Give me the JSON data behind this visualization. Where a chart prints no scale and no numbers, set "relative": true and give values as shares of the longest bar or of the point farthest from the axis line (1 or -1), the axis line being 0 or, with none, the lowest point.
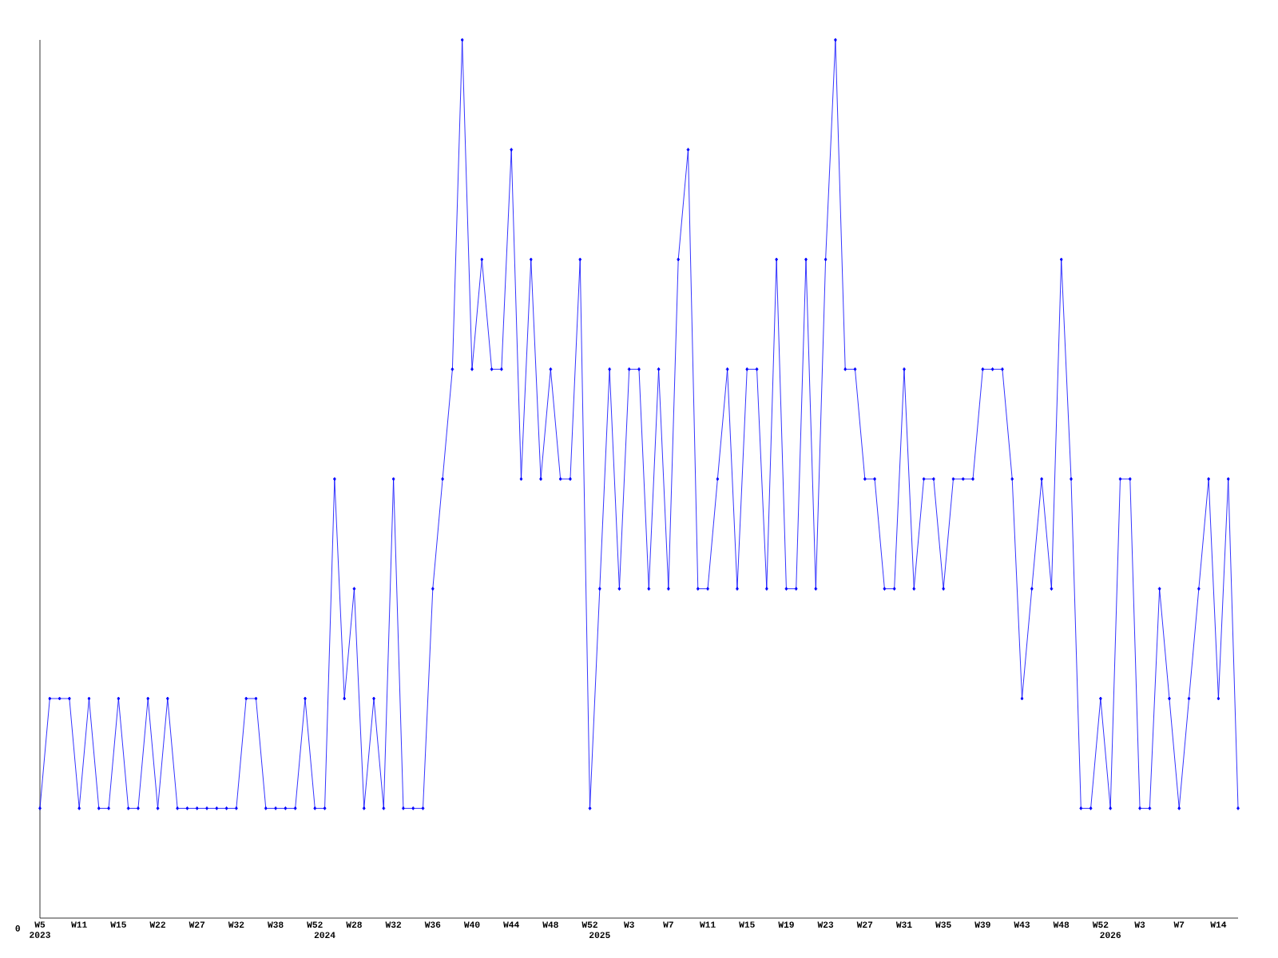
{
  "chart_data": {
    "type": "line",
    "relative": true,
    "color": "#0000ff",
    "marker": "diamond",
    "line_style": "solid",
    "grid": false,
    "categories": [
      "W5 2023",
      null,
      null,
      null,
      "W11",
      null,
      null,
      null,
      "W15",
      null,
      null,
      null,
      "W22",
      null,
      null,
      null,
      "W27",
      null,
      null,
      null,
      "W32",
      null,
      null,
      null,
      "W38",
      null,
      null,
      null,
      "W52",
      "2024",
      null,
      null,
      "W28",
      null,
      null,
      null,
      "W32",
      null,
      null,
      null,
      "W36",
      null,
      null,
      null,
      "W40",
      null,
      null,
      null,
      "W44",
      null,
      null,
      null,
      "W48",
      null,
      null,
      null,
      "W52",
      "2025",
      null,
      null,
      "W3",
      null,
      null,
      null,
      "W7",
      null,
      null,
      null,
      "W11",
      null,
      null,
      null,
      "W15",
      null,
      null,
      null,
      "W19",
      null,
      null,
      null,
      "W23",
      null,
      null,
      null,
      "W27",
      null,
      null,
      null,
      "W31",
      null,
      null,
      null,
      "W35",
      null,
      null,
      null,
      "W39",
      null,
      null,
      null,
      "W43",
      null,
      null,
      null,
      "W48",
      null,
      null,
      null,
      "W52",
      "2026",
      null,
      null,
      "W3",
      null,
      null,
      null,
      "W7",
      null,
      null,
      null,
      "W14",
      null,
      null
    ],
    "values": [
      0.125,
      0.25,
      0.25,
      0.25,
      0.125,
      0.25,
      0.125,
      0.125,
      0.25,
      0.125,
      0.125,
      0.25,
      0.125,
      0.25,
      0.125,
      0.125,
      0.125,
      0.125,
      0.125,
      0.125,
      0.125,
      0.25,
      0.25,
      0.125,
      0.125,
      0.125,
      0.125,
      0.25,
      0.125,
      0.125,
      0.5,
      0.25,
      0.375,
      0.125,
      0.25,
      0.125,
      0.5,
      0.125,
      0.125,
      0.125,
      0.375,
      0.5,
      0.625,
      1,
      0.625,
      0.75,
      0.625,
      0.625,
      0.875,
      0.5,
      0.75,
      0.5,
      0.625,
      0.5,
      0.5,
      0.75,
      0.125,
      0.375,
      0.625,
      0.375,
      0.625,
      0.625,
      0.375,
      0.625,
      0.375,
      0.75,
      0.875,
      0.375,
      0.375,
      0.5,
      0.625,
      0.375,
      0.625,
      0.625,
      0.375,
      0.75,
      0.375,
      0.375,
      0.75,
      0.375,
      0.75,
      1,
      0.625,
      0.625,
      0.5,
      0.5,
      0.375,
      0.375,
      0.625,
      0.375,
      0.5,
      0.5,
      0.375,
      0.5,
      0.5,
      0.5,
      0.625,
      0.625,
      0.625,
      0.5,
      0.25,
      0.375,
      0.5,
      0.375,
      0.75,
      0.5,
      0.125,
      0.125,
      0.25,
      0.125,
      0.5,
      0.5,
      0.125,
      0.125,
      0.375,
      0.25,
      0.125,
      0.25,
      0.375,
      0.5,
      0.25,
      0.5,
      0.125
    ],
    "annotations": [
      "0"
    ]
  }
}
